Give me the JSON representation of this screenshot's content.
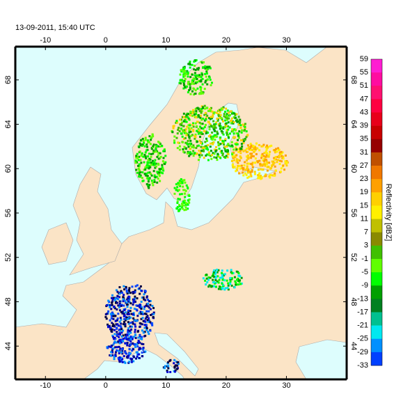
{
  "title": "13-09-2011, 15:40 UTC",
  "map": {
    "xlim": [
      -15,
      40
    ],
    "ylim": [
      41,
      71
    ],
    "xticks": [
      -10,
      0,
      10,
      20,
      30
    ],
    "yticks": [
      44,
      48,
      52,
      56,
      60,
      64,
      68
    ]
  },
  "colorbar": {
    "label": "Reflectivity [dBZ]",
    "ticks": [
      59,
      55,
      51,
      47,
      43,
      39,
      35,
      31,
      27,
      23,
      19,
      15,
      11,
      7,
      3,
      -1,
      -5,
      -9,
      -13,
      -17,
      -21,
      -25,
      -29,
      -33
    ],
    "colors": [
      "#ff1dd2",
      "#ff0da0",
      "#ff1070",
      "#ff0040",
      "#e8001a",
      "#c80000",
      "#960000",
      "#c05000",
      "#f07800",
      "#ffa000",
      "#ffd000",
      "#fff000",
      "#c0c000",
      "#8a8a00",
      "#40c000",
      "#60ff00",
      "#00ff00",
      "#00a000",
      "#008020",
      "#00c090",
      "#00e8f0",
      "#0090ff",
      "#0040ff",
      "#0000d0",
      "#000090",
      "#000040",
      "#000000"
    ]
  }
}
